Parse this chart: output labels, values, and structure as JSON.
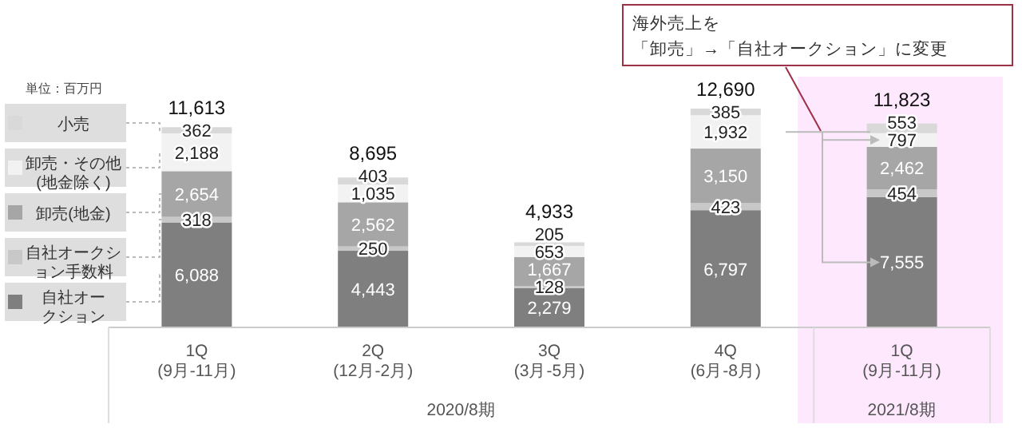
{
  "chart_data": {
    "type": "bar",
    "stacked": true,
    "categories": [
      "1Q\n(9月-11月)",
      "2Q\n(12月-2月)",
      "3Q\n(3月-5月)",
      "4Q\n(6月-8月)",
      "1Q\n(9月-11月)"
    ],
    "series": [
      {
        "name": "自社オークション",
        "color": "#7f7f7f",
        "values": [
          6088,
          4443,
          2279,
          6797,
          7555
        ],
        "value_labels": [
          "6,088",
          "4,443",
          "2,279",
          "6,797",
          "7,555"
        ]
      },
      {
        "name": "自社オークション手数料",
        "color": "#c8c8c8",
        "values": [
          318,
          250,
          128,
          423,
          454
        ],
        "value_labels": [
          "318",
          "250",
          "128",
          "423",
          "454"
        ]
      },
      {
        "name": "卸売(地金)",
        "color": "#a6a6a6",
        "values": [
          2654,
          2562,
          1667,
          3150,
          2462
        ],
        "value_labels": [
          "2,654",
          "2,562",
          "1,667",
          "3,150",
          "2,462"
        ]
      },
      {
        "name": "卸売・その他(地金除く)",
        "color": "#f2f2f2",
        "values": [
          2188,
          1035,
          653,
          1932,
          797
        ],
        "value_labels": [
          "2,188",
          "1,035",
          "653",
          "1,932",
          "797"
        ]
      },
      {
        "name": "小売",
        "color": "#d9d9d9",
        "values": [
          362,
          403,
          205,
          385,
          553
        ],
        "value_labels": [
          "362",
          "403",
          "205",
          "385",
          "553"
        ]
      }
    ],
    "legend": "left",
    "totals": [
      "11,613",
      "8,695",
      "4,933",
      "12,690",
      "11,823"
    ],
    "annotations": [
      "単位：百万円",
      "海外売上を",
      "「卸売」→「自社オークション」に変更",
      "2020/8期",
      "2021/8期"
    ]
  }
}
